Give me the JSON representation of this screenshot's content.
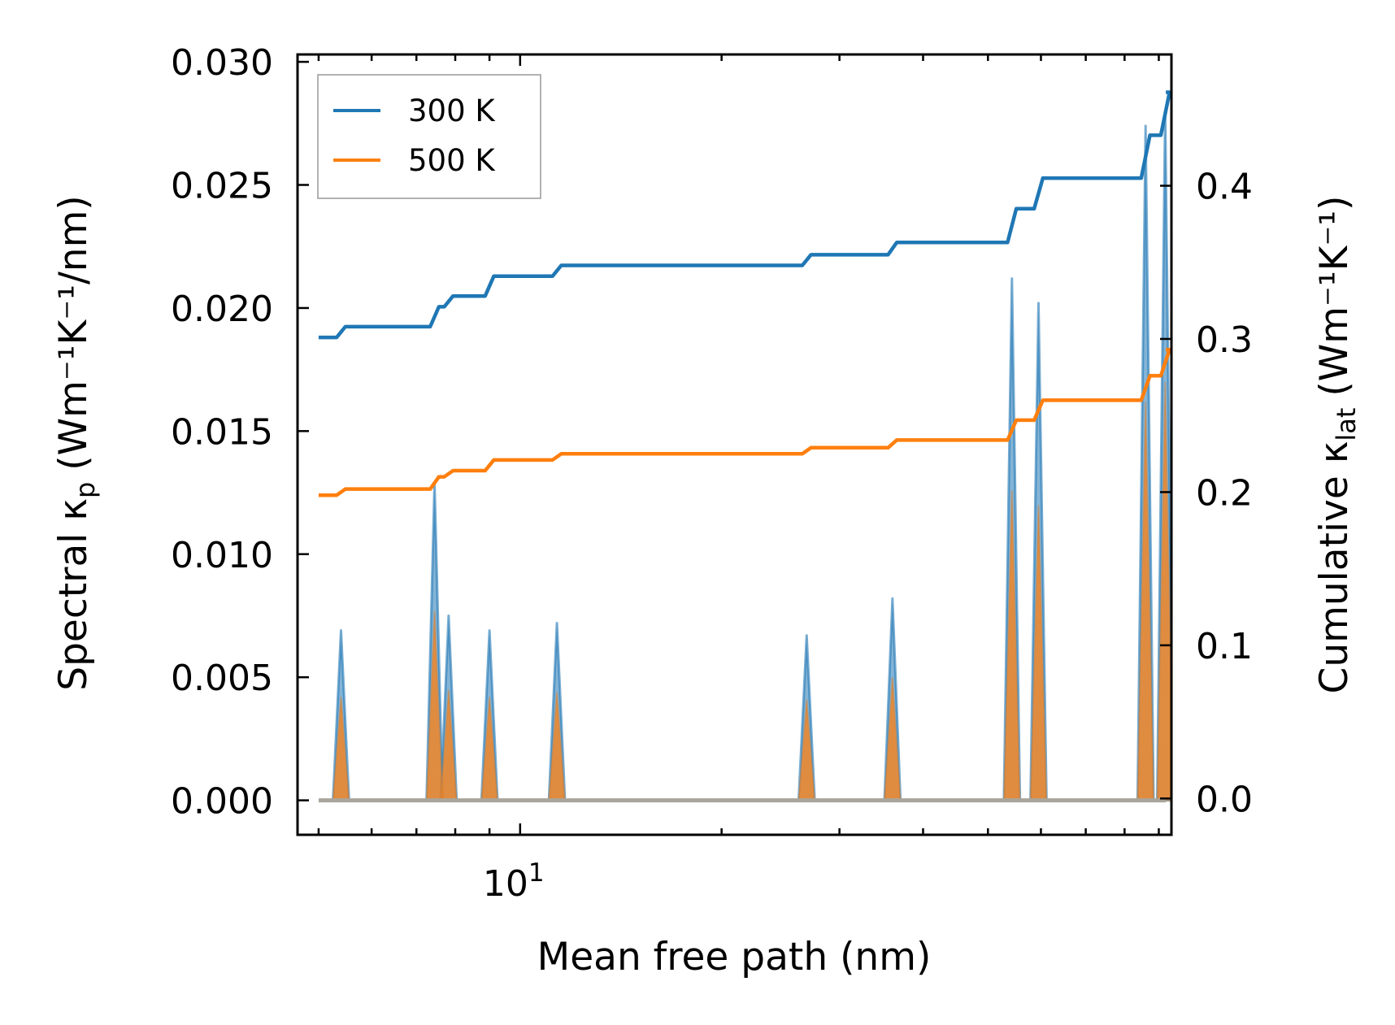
{
  "chart_data": {
    "type": "line",
    "x_scale": "log",
    "xlabel": "Mean free path (nm)",
    "ylabel_left": {
      "main": "Spectral κ",
      "sub": "p",
      "unit": "(Wm⁻¹K⁻¹/nm)"
    },
    "ylabel_right": {
      "main": "Cumulative κ",
      "sub": "lat",
      "unit": "(Wm⁻¹K⁻¹)"
    },
    "xlim": [
      4.65,
      94
    ],
    "ylim_left": [
      -0.0014,
      0.0303
    ],
    "ylim_right": [
      -0.0237,
      0.4857
    ],
    "x_major_tick_labels": [
      {
        "value": 10,
        "base": "10",
        "exp": "1"
      }
    ],
    "y_left_tick_labels": [
      "0.000",
      "0.005",
      "0.010",
      "0.015",
      "0.020",
      "0.025",
      "0.030"
    ],
    "y_right_tick_labels": [
      "0.0",
      "0.1",
      "0.2",
      "0.3",
      "0.4"
    ],
    "legend": {
      "location": "upper left",
      "entries": [
        "300 K",
        "500 K"
      ]
    },
    "colors": {
      "300K": "#1f77b4",
      "500K": "#ff7f0e",
      "spectral_overlay": "#ff7f0e"
    },
    "spectral_peaks": [
      {
        "x": 5.4,
        "k300": 0.0069,
        "k500": 0.0042
      },
      {
        "x": 7.45,
        "k300": 0.0129,
        "k500": 0.0077
      },
      {
        "x": 7.82,
        "k300": 0.0075,
        "k500": 0.0045
      },
      {
        "x": 9.0,
        "k300": 0.0069,
        "k500": 0.0042
      },
      {
        "x": 11.35,
        "k300": 0.0072,
        "k500": 0.0044
      },
      {
        "x": 26.8,
        "k300": 0.0067,
        "k500": 0.0041
      },
      {
        "x": 36.0,
        "k300": 0.0082,
        "k500": 0.005
      },
      {
        "x": 54.3,
        "k300": 0.0212,
        "k500": 0.0126
      },
      {
        "x": 59.5,
        "k300": 0.0202,
        "k500": 0.012
      },
      {
        "x": 86.0,
        "k300": 0.0274,
        "k500": 0.0162
      },
      {
        "x": 92.0,
        "k300": 0.028,
        "k500": 0.017
      }
    ],
    "cumulative": {
      "x_start": 5.0,
      "x_end": 92.2,
      "series": [
        {
          "name": "300 K",
          "start": 0.301,
          "steps": [
            [
              5.4,
              0.308
            ],
            [
              7.45,
              0.321
            ],
            [
              7.82,
              0.328
            ],
            [
              9.0,
              0.341
            ],
            [
              11.35,
              0.348
            ],
            [
              26.8,
              0.355
            ],
            [
              36.0,
              0.363
            ],
            [
              54.3,
              0.385
            ],
            [
              59.5,
              0.405
            ],
            [
              86.0,
              0.433
            ],
            [
              92.0,
              0.461
            ]
          ]
        },
        {
          "name": "500 K",
          "start": 0.198,
          "steps": [
            [
              5.4,
              0.202
            ],
            [
              7.45,
              0.21
            ],
            [
              7.82,
              0.214
            ],
            [
              9.0,
              0.221
            ],
            [
              11.35,
              0.225
            ],
            [
              26.8,
              0.229
            ],
            [
              36.0,
              0.234
            ],
            [
              54.3,
              0.247
            ],
            [
              59.5,
              0.26
            ],
            [
              86.0,
              0.276
            ],
            [
              92.0,
              0.293
            ]
          ]
        }
      ]
    }
  }
}
